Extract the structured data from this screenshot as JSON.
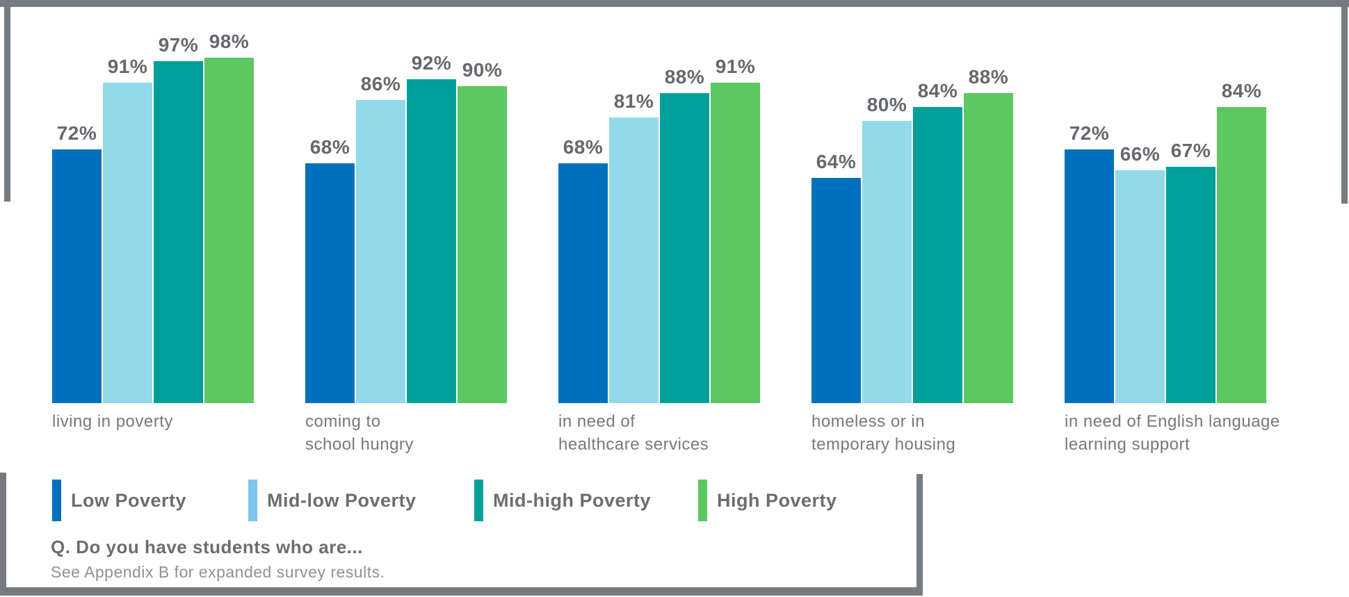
{
  "colors": {
    "frame": "#757B81",
    "value_label": "#65696E",
    "category_label": "#76787B",
    "legend_text": "#6B6D70"
  },
  "chart_data": {
    "type": "bar",
    "title": "",
    "xlabel": "",
    "ylabel": "",
    "unit": "%",
    "value_suffix": "%",
    "ylim": [
      0,
      100
    ],
    "grid": false,
    "axes_hidden": true,
    "legend_position": "bottom-left",
    "categories": [
      "living in poverty",
      "coming to\nschool hungry",
      "in need of\nhealthcare services",
      "homeless or in\ntemporary housing",
      "in need of English language\nlearning support"
    ],
    "series": [
      {
        "name": "Low Poverty",
        "color": "#0071BC",
        "legend_color": "#0071BC",
        "values": [
          72,
          68,
          68,
          64,
          72
        ]
      },
      {
        "name": "Mid-low Poverty",
        "color": "#92D9E9",
        "legend_color": "#7EC4EC",
        "values": [
          91,
          86,
          81,
          80,
          66
        ]
      },
      {
        "name": "Mid-high Poverty",
        "color": "#00A09A",
        "legend_color": "#00A09A",
        "values": [
          97,
          92,
          88,
          84,
          67
        ]
      },
      {
        "name": "High Poverty",
        "color": "#5CC860",
        "legend_color": "#5CC860",
        "values": [
          98,
          90,
          91,
          88,
          84
        ]
      }
    ]
  },
  "footer": {
    "question": "Q. Do you have students who are...",
    "note": "See Appendix B for expanded survey results."
  }
}
